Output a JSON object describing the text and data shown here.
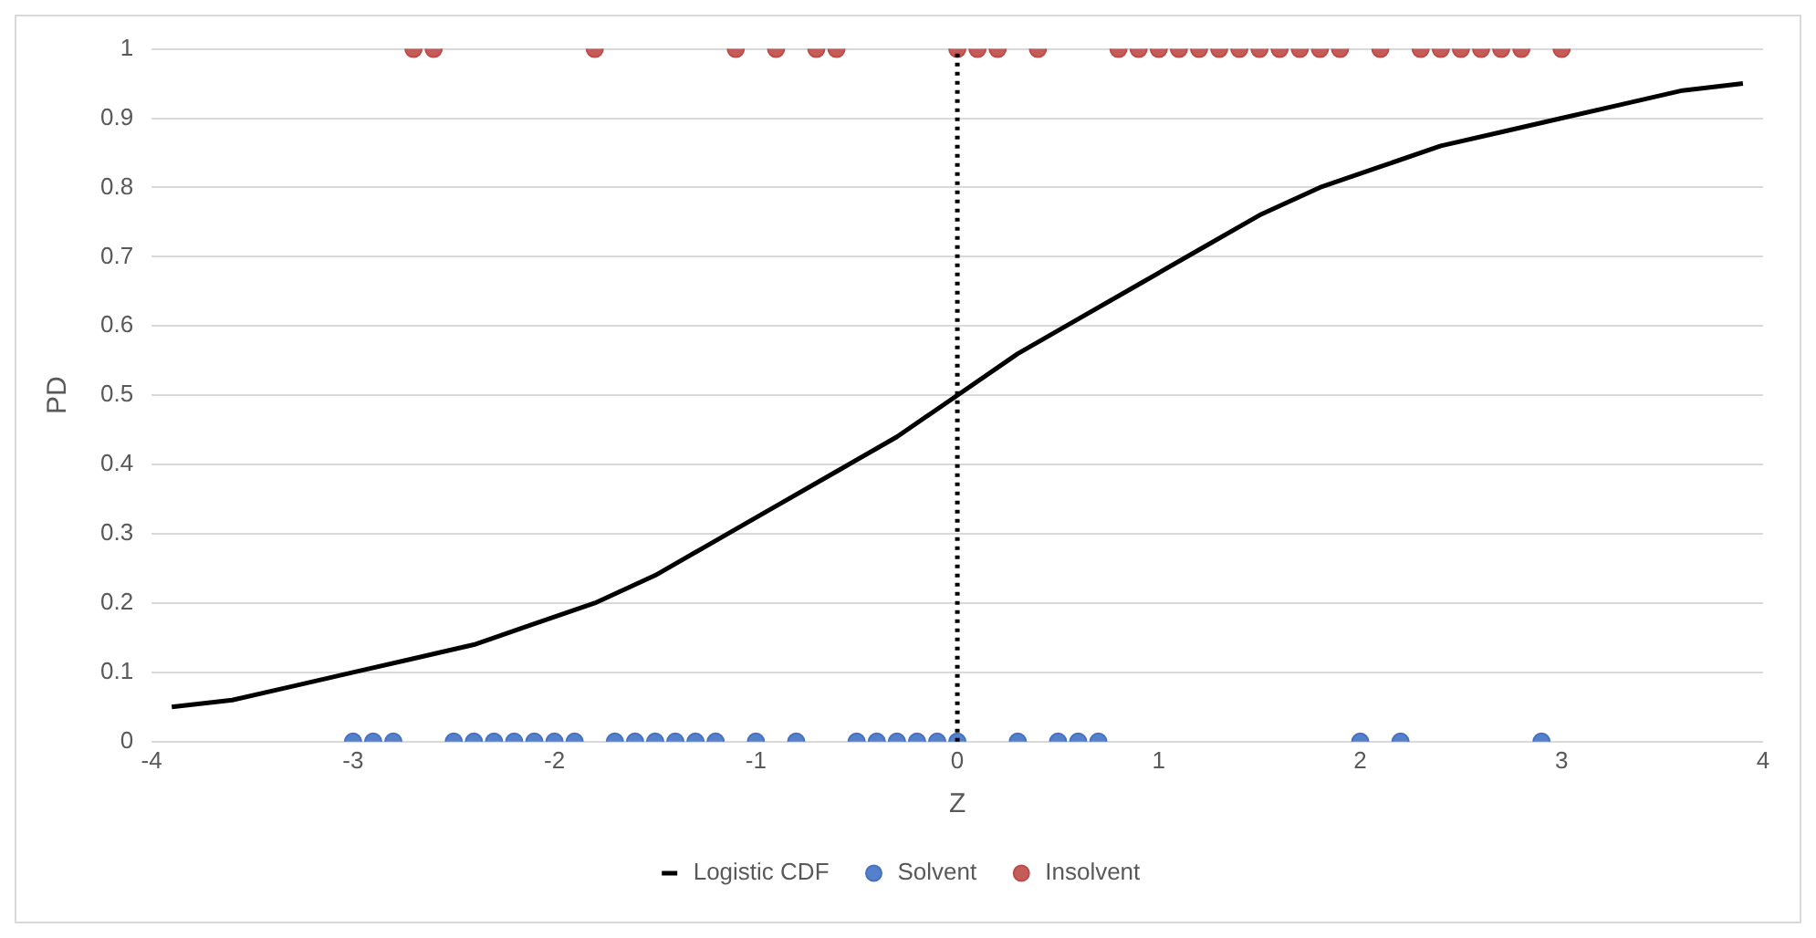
{
  "chart_data": {
    "type": "scatter",
    "xlabel": "Z",
    "ylabel": "PD",
    "xlim": [
      -4,
      4
    ],
    "xticks": [
      -4,
      -3,
      -2,
      -1,
      0,
      1,
      2,
      3,
      4
    ],
    "ylim": [
      0,
      1
    ],
    "yticks": [
      0,
      0.1,
      0.2,
      0.3,
      0.4,
      0.5,
      0.6,
      0.7,
      0.8,
      0.9,
      1
    ],
    "grid": "y",
    "legend": "bottom",
    "ref_lines": [
      {
        "axis": "x",
        "value": 0,
        "color": "#000000",
        "line_style": "dotted"
      }
    ],
    "series": [
      {
        "name": "Logistic CDF",
        "type": "line",
        "color": "#000000",
        "marker": "none",
        "line_style": "solid",
        "x": [
          -3.9,
          -3.6,
          -3.3,
          -3.0,
          -2.7,
          -2.4,
          -2.1,
          -1.8,
          -1.5,
          -1.2,
          -0.9,
          -0.6,
          -0.3,
          0,
          0.3,
          0.6,
          0.9,
          1.2,
          1.5,
          1.8,
          2.1,
          2.4,
          2.7,
          3.0,
          3.3,
          3.6,
          3.9
        ],
        "values": [
          0.05,
          0.06,
          0.08,
          0.1,
          0.12,
          0.14,
          0.17,
          0.2,
          0.24,
          0.29,
          0.34,
          0.39,
          0.44,
          0.5,
          0.56,
          0.61,
          0.66,
          0.71,
          0.76,
          0.8,
          0.83,
          0.86,
          0.88,
          0.9,
          0.92,
          0.94,
          0.95
        ]
      },
      {
        "name": "Solvent",
        "type": "scatter",
        "color": "#4472c4",
        "marker": "circle",
        "x": [
          -3.0,
          -2.9,
          -2.8,
          -2.5,
          -2.4,
          -2.3,
          -2.2,
          -2.1,
          -2.0,
          -1.9,
          -1.7,
          -1.6,
          -1.5,
          -1.4,
          -1.3,
          -1.2,
          -1.0,
          -0.8,
          -0.5,
          -0.4,
          -0.3,
          -0.2,
          -0.1,
          0,
          0.3,
          0.5,
          0.6,
          0.7,
          2.0,
          2.2,
          2.9
        ],
        "values": [
          0,
          0,
          0,
          0,
          0,
          0,
          0,
          0,
          0,
          0,
          0,
          0,
          0,
          0,
          0,
          0,
          0,
          0,
          0,
          0,
          0,
          0,
          0,
          0,
          0,
          0,
          0,
          0,
          0,
          0,
          0
        ]
      },
      {
        "name": "Insolvent",
        "type": "scatter",
        "color": "#be4b48",
        "marker": "circle",
        "x": [
          -2.7,
          -2.6,
          -1.8,
          -1.1,
          -0.9,
          -0.7,
          -0.6,
          0,
          0.1,
          0.2,
          0.4,
          0.8,
          0.9,
          1.0,
          1.1,
          1.2,
          1.3,
          1.4,
          1.5,
          1.6,
          1.7,
          1.8,
          1.9,
          2.1,
          2.3,
          2.4,
          2.5,
          2.6,
          2.7,
          2.8,
          3.0
        ],
        "values": [
          1,
          1,
          1,
          1,
          1,
          1,
          1,
          1,
          1,
          1,
          1,
          1,
          1,
          1,
          1,
          1,
          1,
          1,
          1,
          1,
          1,
          1,
          1,
          1,
          1,
          1,
          1,
          1,
          1,
          1,
          1
        ]
      }
    ]
  }
}
